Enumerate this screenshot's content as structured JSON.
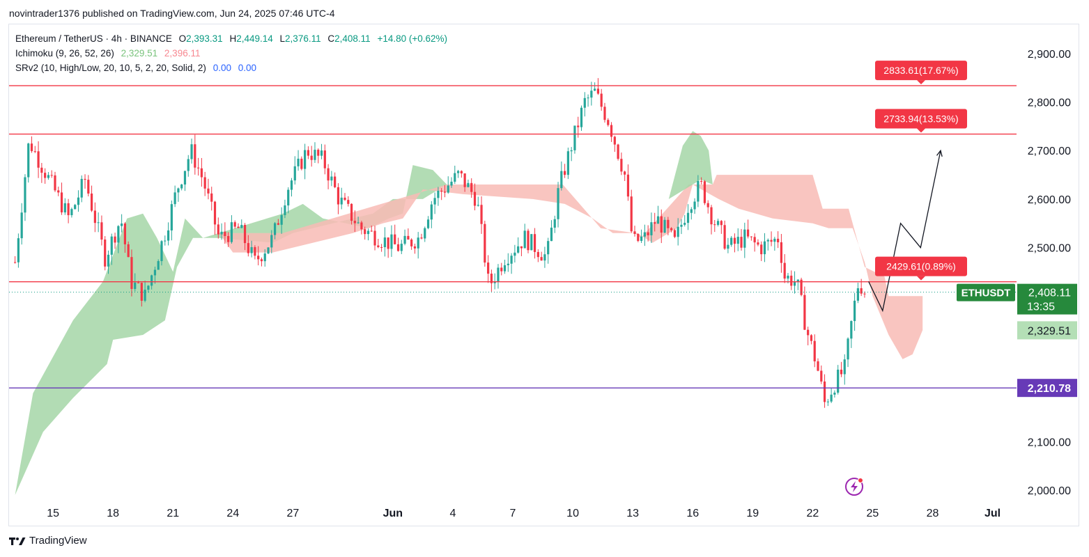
{
  "header": {
    "published": "novintrader1376 published on TradingView.com, Jun 24, 2025 07:46 UTC-4"
  },
  "legend": {
    "symbol": "Ethereum / TetherUS · 4h · BINANCE",
    "o_label": "O",
    "o_value": "2,393.31",
    "h_label": "H",
    "h_value": "2,449.14",
    "l_label": "L",
    "l_value": "2,376.11",
    "c_label": "C",
    "c_value": "2,408.11",
    "change": "+14.80 (+0.62%)",
    "ichimoku_label": "Ichimoku (9, 26, 52, 26)",
    "ichimoku_v1": "2,329.51",
    "ichimoku_v2": "2,396.11",
    "srv2_label": "SRv2 (10, High/Low, 20, 10, 5, 2, 20, Solid, 2)",
    "srv2_v1": "0.00",
    "srv2_v2": "0.00"
  },
  "footer": {
    "brand": "TradingView"
  },
  "colors": {
    "up": "#089981",
    "up_candle": "#26a69a",
    "down": "#f23645",
    "cloud_green": "#a5d6a7",
    "cloud_red": "#f8bbb5",
    "resistance": "#f23645",
    "support": "#673ab7",
    "last_price_bg": "#26893c",
    "grid": "#f0f3fa"
  },
  "chart_data": {
    "type": "candlestick",
    "symbol_tag": "ETHUSDT",
    "ylim": [
      1980,
      2960
    ],
    "y_ticks": [
      {
        "value": 2900,
        "label": "2,900.00"
      },
      {
        "value": 2800,
        "label": "2,800.00"
      },
      {
        "value": 2700,
        "label": "2,700.00"
      },
      {
        "value": 2600,
        "label": "2,600.00"
      },
      {
        "value": 2500,
        "label": "2,500.00"
      },
      {
        "value": 2100,
        "label": "2,100.00"
      },
      {
        "value": 2000,
        "label": "2,000.00"
      }
    ],
    "x_ticks": [
      {
        "day": 15,
        "label": "15",
        "bold": false
      },
      {
        "day": 18,
        "label": "18",
        "bold": false
      },
      {
        "day": 21,
        "label": "21",
        "bold": false
      },
      {
        "day": 24,
        "label": "24",
        "bold": false
      },
      {
        "day": 27,
        "label": "27",
        "bold": false
      },
      {
        "day": 32,
        "label": "Jun",
        "bold": true
      },
      {
        "day": 35,
        "label": "4",
        "bold": false
      },
      {
        "day": 38,
        "label": "7",
        "bold": false
      },
      {
        "day": 41,
        "label": "10",
        "bold": false
      },
      {
        "day": 44,
        "label": "13",
        "bold": false
      },
      {
        "day": 47,
        "label": "16",
        "bold": false
      },
      {
        "day": 50,
        "label": "19",
        "bold": false
      },
      {
        "day": 53,
        "label": "22",
        "bold": false
      },
      {
        "day": 56,
        "label": "25",
        "bold": false
      },
      {
        "day": 59,
        "label": "28",
        "bold": false
      },
      {
        "day": 62,
        "label": "Jul",
        "bold": true
      }
    ],
    "x_range_days": [
      12.8,
      63.2
    ],
    "price_path": [
      [
        13.1,
        2470
      ],
      [
        13.8,
        2720
      ],
      [
        14.8,
        2640
      ],
      [
        15.8,
        2560
      ],
      [
        16.6,
        2640
      ],
      [
        17.6,
        2480
      ],
      [
        18.4,
        2560
      ],
      [
        18.9,
        2430
      ],
      [
        19.6,
        2400
      ],
      [
        20.6,
        2530
      ],
      [
        21.2,
        2620
      ],
      [
        21.9,
        2700
      ],
      [
        22.5,
        2640
      ],
      [
        23.3,
        2520
      ],
      [
        24.3,
        2540
      ],
      [
        25.1,
        2470
      ],
      [
        26.0,
        2520
      ],
      [
        26.7,
        2620
      ],
      [
        27.7,
        2700
      ],
      [
        28.5,
        2680
      ],
      [
        29.3,
        2600
      ],
      [
        30.4,
        2540
      ],
      [
        31.3,
        2520
      ],
      [
        32.3,
        2500
      ],
      [
        33.3,
        2520
      ],
      [
        34.0,
        2600
      ],
      [
        35.3,
        2650
      ],
      [
        36.2,
        2600
      ],
      [
        36.8,
        2420
      ],
      [
        37.6,
        2480
      ],
      [
        38.6,
        2520
      ],
      [
        39.7,
        2480
      ],
      [
        40.3,
        2620
      ],
      [
        41.0,
        2720
      ],
      [
        41.6,
        2800
      ],
      [
        42.1,
        2820
      ],
      [
        42.8,
        2760
      ],
      [
        43.6,
        2650
      ],
      [
        44.0,
        2510
      ],
      [
        44.6,
        2520
      ],
      [
        45.2,
        2560
      ],
      [
        46.1,
        2510
      ],
      [
        46.8,
        2590
      ],
      [
        47.4,
        2630
      ],
      [
        48.0,
        2560
      ],
      [
        48.8,
        2500
      ],
      [
        49.6,
        2520
      ],
      [
        50.4,
        2500
      ],
      [
        51.3,
        2520
      ],
      [
        51.6,
        2440
      ],
      [
        52.2,
        2430
      ],
      [
        52.7,
        2330
      ],
      [
        53.2,
        2260
      ],
      [
        53.6,
        2180
      ],
      [
        54.1,
        2220
      ],
      [
        54.6,
        2250
      ],
      [
        55.0,
        2360
      ],
      [
        55.3,
        2430
      ],
      [
        55.6,
        2410
      ]
    ],
    "cloud_green_top": [
      [
        13.1,
        1990
      ],
      [
        14.0,
        2200
      ],
      [
        16.0,
        2350
      ],
      [
        17.5,
        2430
      ],
      [
        18.7,
        2560
      ],
      [
        19.5,
        2570
      ],
      [
        20.2,
        2520
      ],
      [
        21.0,
        2450
      ],
      [
        21.6,
        2560
      ],
      [
        22.5,
        2520
      ],
      [
        23.3,
        2530
      ],
      [
        26.5,
        2570
      ],
      [
        27.5,
        2590
      ],
      [
        28.5,
        2560
      ],
      [
        30.8,
        2540
      ],
      [
        31.8,
        2560
      ],
      [
        32.5,
        2570
      ],
      [
        33.0,
        2670
      ],
      [
        34.0,
        2660
      ],
      [
        34.7,
        2630
      ]
    ],
    "cloud_green_bot": [
      [
        34.7,
        2630
      ],
      [
        33.5,
        2600
      ],
      [
        32.0,
        2600
      ],
      [
        31.0,
        2570
      ],
      [
        27.0,
        2530
      ],
      [
        26.0,
        2510
      ],
      [
        23.3,
        2520
      ],
      [
        22.0,
        2520
      ],
      [
        21.2,
        2460
      ],
      [
        20.6,
        2350
      ],
      [
        19.5,
        2320
      ],
      [
        18.0,
        2310
      ],
      [
        17.7,
        2260
      ],
      [
        16.0,
        2190
      ],
      [
        14.5,
        2120
      ],
      [
        13.1,
        1990
      ]
    ],
    "cloud_red_top": [
      [
        23.3,
        2530
      ],
      [
        26.5,
        2530
      ],
      [
        34.7,
        2630
      ],
      [
        40.5,
        2630
      ],
      [
        42.4,
        2540
      ],
      [
        44.1,
        2530
      ],
      [
        44.4,
        2520
      ],
      [
        46.8,
        2630
      ],
      [
        48.0,
        2630
      ],
      [
        48.2,
        2650
      ],
      [
        53.0,
        2650
      ],
      [
        53.5,
        2580
      ],
      [
        54.8,
        2580
      ],
      [
        55.6,
        2460
      ],
      [
        56.6,
        2440
      ],
      [
        56.8,
        2400
      ],
      [
        58.5,
        2400
      ],
      [
        58.5,
        2330
      ]
    ],
    "cloud_red_bot": [
      [
        58.5,
        2330
      ],
      [
        58.0,
        2280
      ],
      [
        57.5,
        2270
      ],
      [
        56.8,
        2320
      ],
      [
        56.0,
        2400
      ],
      [
        55.6,
        2470
      ],
      [
        55.0,
        2540
      ],
      [
        53.8,
        2540
      ],
      [
        53.0,
        2550
      ],
      [
        51.0,
        2560
      ],
      [
        49.3,
        2580
      ],
      [
        48.3,
        2600
      ],
      [
        47.0,
        2630
      ],
      [
        46.6,
        2570
      ],
      [
        46.2,
        2540
      ],
      [
        45.0,
        2510
      ],
      [
        44.2,
        2530
      ],
      [
        43.0,
        2530
      ],
      [
        42.0,
        2560
      ],
      [
        40.6,
        2590
      ],
      [
        39.0,
        2600
      ],
      [
        35.5,
        2610
      ],
      [
        33.5,
        2620
      ],
      [
        32.5,
        2560
      ],
      [
        31.5,
        2550
      ],
      [
        30.0,
        2530
      ],
      [
        26.0,
        2490
      ],
      [
        24.0,
        2490
      ],
      [
        23.3,
        2530
      ]
    ],
    "cloud_green2_top": [
      [
        45.8,
        2600
      ],
      [
        46.5,
        2710
      ],
      [
        47.0,
        2740
      ],
      [
        47.4,
        2730
      ],
      [
        47.8,
        2700
      ],
      [
        48.0,
        2630
      ]
    ],
    "cloud_green2_bot": [
      [
        48.0,
        2630
      ],
      [
        47.4,
        2640
      ],
      [
        46.6,
        2620
      ],
      [
        45.8,
        2600
      ]
    ],
    "levels": [
      {
        "name": "resistance-2833",
        "value": 2833.61,
        "tag": "2833.61(17.67%)",
        "color": "#f23645"
      },
      {
        "name": "resistance-2733",
        "value": 2733.94,
        "tag": "2733.94(13.53%)",
        "color": "#f23645"
      },
      {
        "name": "level-2429",
        "value": 2429.61,
        "tag": "2429.61(0.89%)",
        "color": "#f23645"
      },
      {
        "name": "support-2210",
        "value": 2210.78,
        "tag": "2,210.78",
        "color": "#673ab7"
      }
    ],
    "last_price": {
      "value": 2408.11,
      "label": "2,408.11",
      "countdown": "13:35"
    },
    "ichimoku_tags": [
      {
        "value": 2396.11,
        "label": "2,396.11",
        "bg": "#f7a9a8",
        "fg": "#131722"
      },
      {
        "value": 2329.51,
        "label": "2,329.51",
        "bg": "#b4dfb6",
        "fg": "#131722"
      }
    ],
    "projection_path": [
      [
        55.8,
        2430
      ],
      [
        56.5,
        2370
      ],
      [
        57.4,
        2550
      ],
      [
        58.4,
        2500
      ],
      [
        59.4,
        2700
      ]
    ]
  }
}
